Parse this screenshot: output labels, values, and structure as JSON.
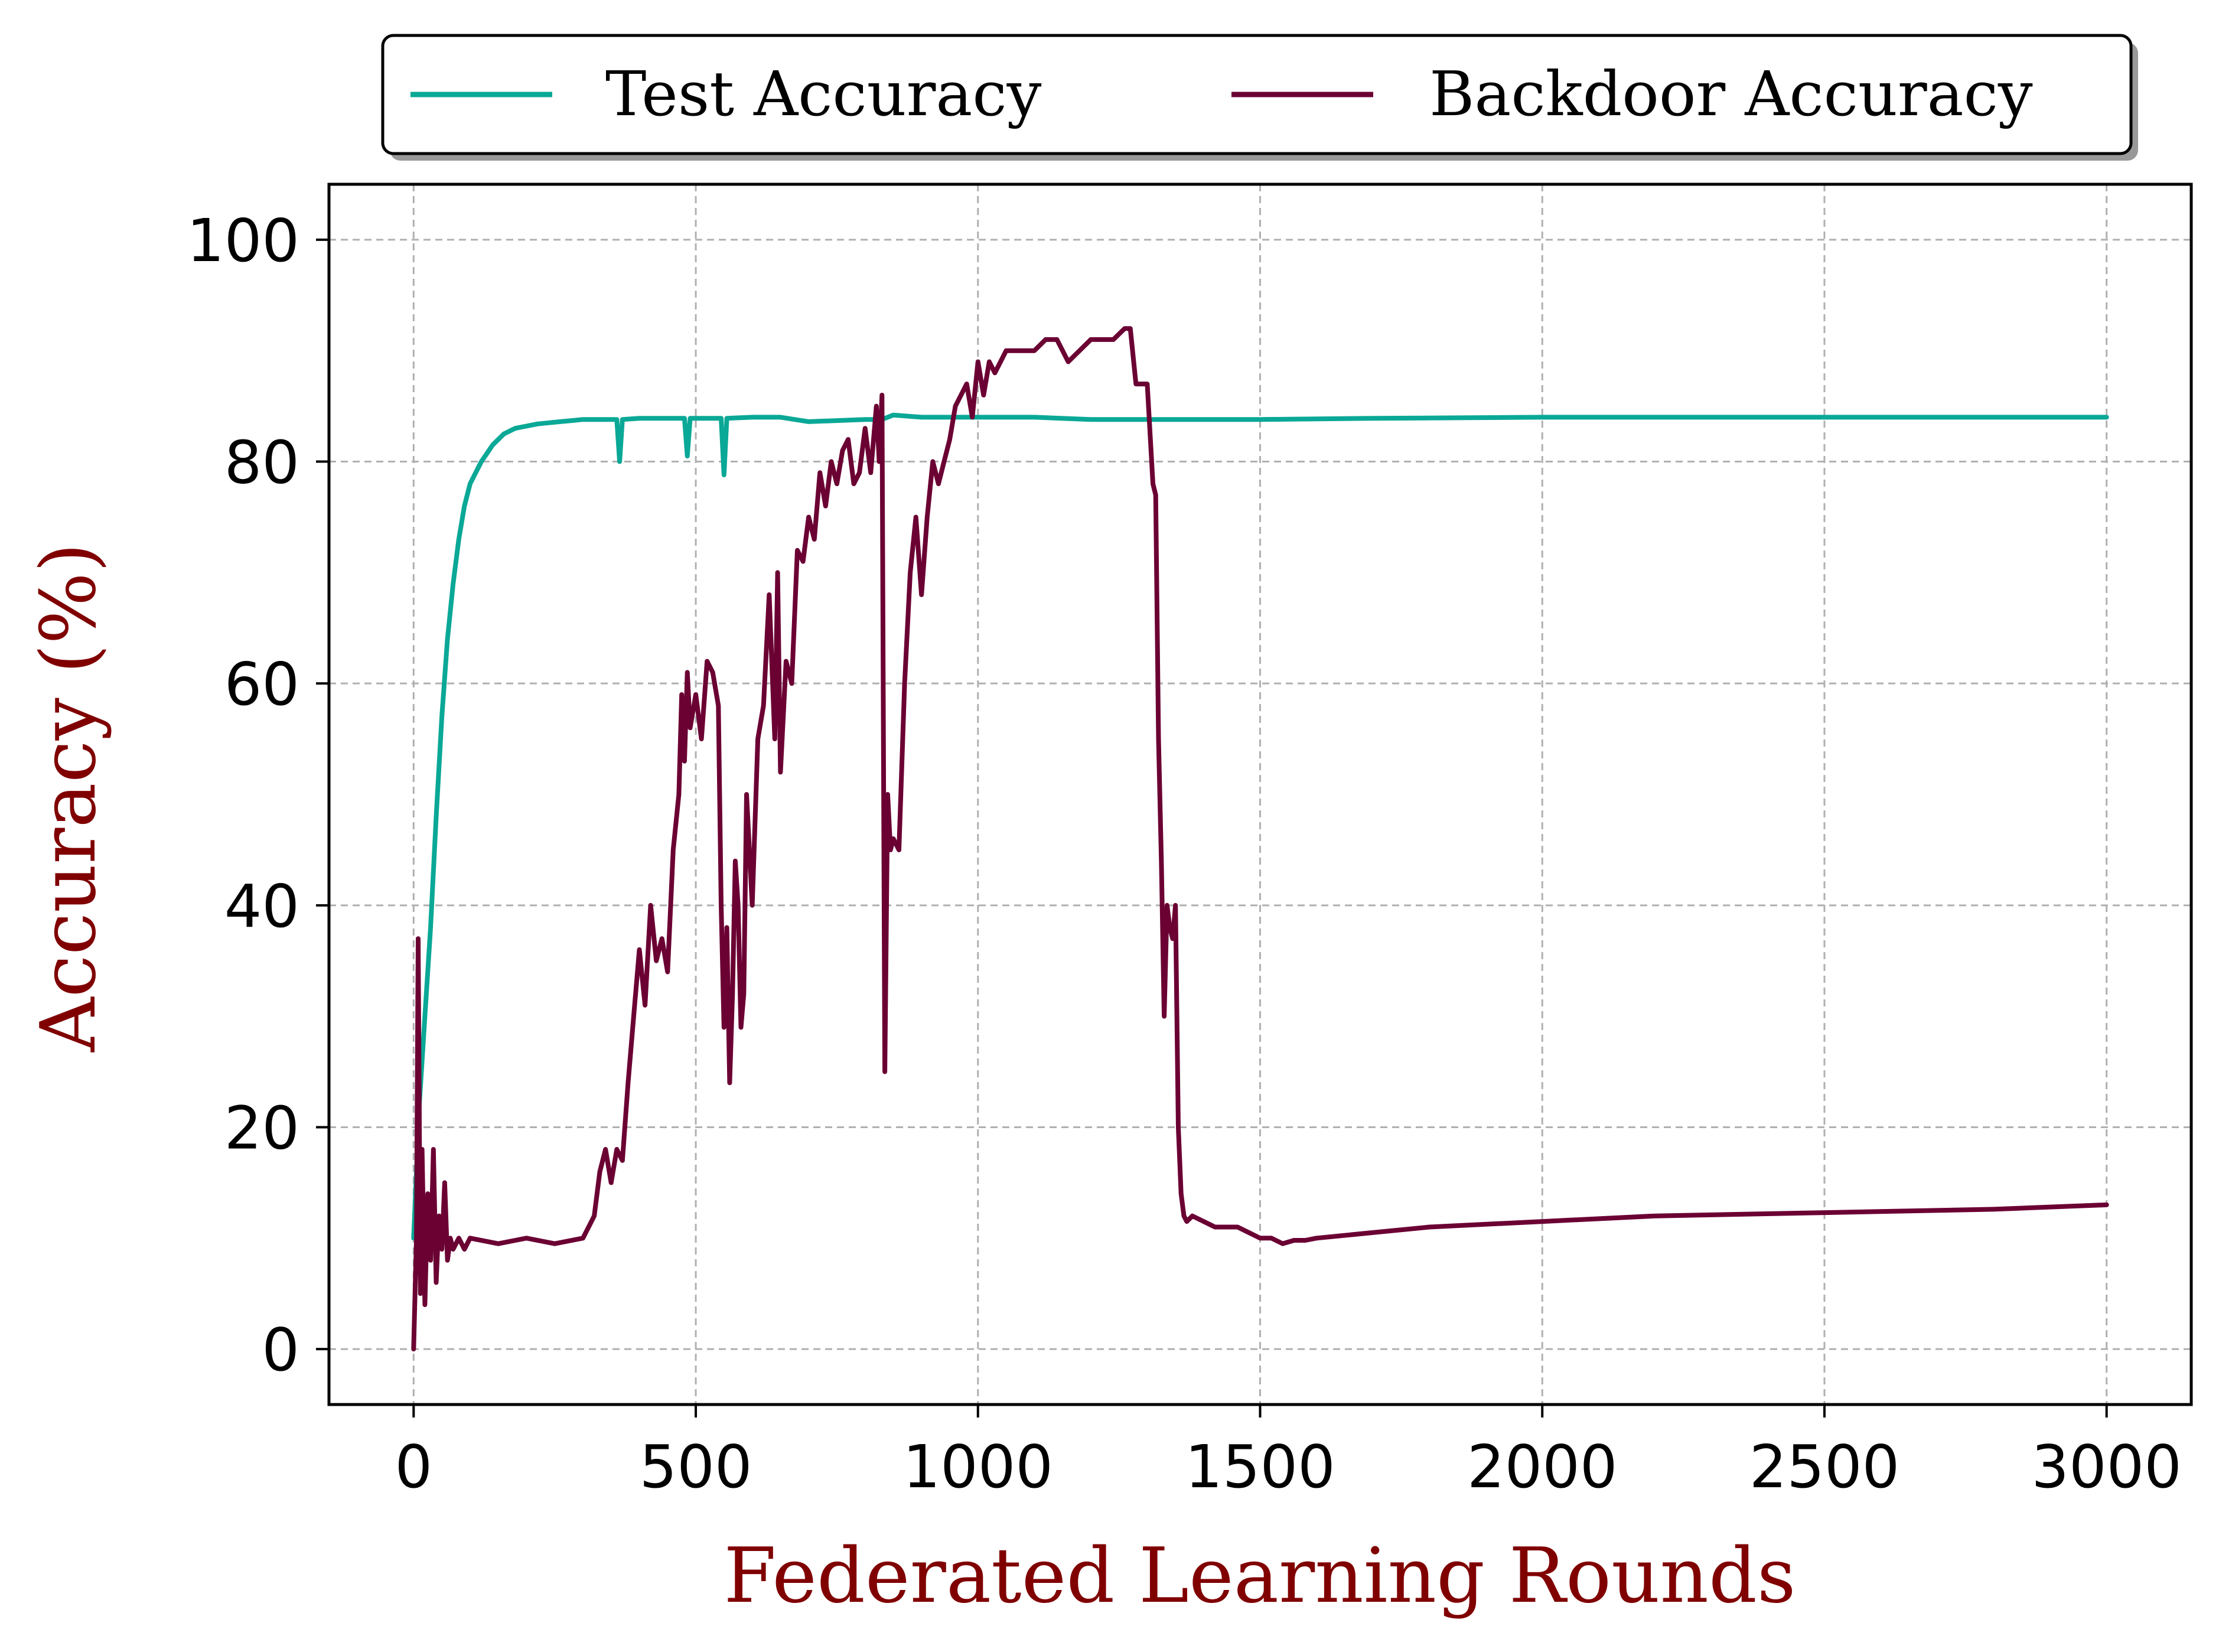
{
  "chart_data": {
    "type": "line",
    "title": "",
    "xlabel": "Federated Learning Rounds",
    "ylabel": "Accuracy (%)",
    "xlim": [
      -150,
      3150
    ],
    "ylim": [
      -5,
      105
    ],
    "xticks": [
      0,
      500,
      1000,
      1500,
      2000,
      2500,
      3000
    ],
    "yticks": [
      0,
      20,
      40,
      60,
      80,
      100
    ],
    "grid": true,
    "legend_position": "top, outside plot",
    "series": [
      {
        "name": "Test Accuracy",
        "color": "#0aa896",
        "x": [
          0,
          10,
          20,
          30,
          40,
          50,
          60,
          70,
          80,
          90,
          100,
          110,
          120,
          140,
          160,
          180,
          200,
          220,
          240,
          260,
          280,
          300,
          320,
          340,
          360,
          365,
          370,
          400,
          450,
          480,
          485,
          490,
          520,
          545,
          550,
          555,
          600,
          650,
          700,
          800,
          830,
          850,
          900,
          1000,
          1100,
          1200,
          1300,
          1400,
          1500,
          1700,
          2000,
          2500,
          3000
        ],
        "y": [
          10,
          22,
          30,
          38,
          48,
          57,
          64,
          69,
          73,
          76,
          78,
          79,
          80,
          81.5,
          82.5,
          83,
          83.2,
          83.4,
          83.5,
          83.6,
          83.7,
          83.8,
          83.8,
          83.8,
          83.8,
          80,
          83.8,
          83.9,
          83.9,
          83.9,
          80.5,
          83.9,
          83.9,
          83.9,
          78.8,
          83.9,
          84,
          84,
          83.6,
          83.8,
          83.8,
          84.2,
          84,
          84,
          84,
          83.8,
          83.8,
          83.8,
          83.8,
          83.9,
          84,
          84,
          84
        ]
      },
      {
        "name": "Backdoor Accuracy",
        "color": "#6b0033",
        "x": [
          0,
          5,
          8,
          12,
          15,
          20,
          25,
          30,
          35,
          40,
          45,
          50,
          55,
          60,
          65,
          70,
          80,
          90,
          100,
          150,
          200,
          250,
          300,
          320,
          330,
          340,
          350,
          360,
          370,
          380,
          390,
          400,
          410,
          420,
          430,
          440,
          450,
          460,
          470,
          475,
          480,
          485,
          490,
          500,
          510,
          520,
          530,
          540,
          545,
          550,
          555,
          560,
          565,
          570,
          575,
          580,
          585,
          590,
          600,
          610,
          620,
          630,
          640,
          645,
          650,
          660,
          670,
          680,
          690,
          700,
          710,
          720,
          730,
          740,
          750,
          760,
          770,
          780,
          790,
          800,
          810,
          820,
          825,
          830,
          835,
          840,
          845,
          850,
          860,
          870,
          880,
          890,
          900,
          910,
          920,
          930,
          940,
          950,
          960,
          970,
          980,
          990,
          1000,
          1010,
          1020,
          1030,
          1040,
          1050,
          1060,
          1080,
          1100,
          1120,
          1140,
          1160,
          1180,
          1200,
          1220,
          1240,
          1260,
          1270,
          1280,
          1290,
          1300,
          1310,
          1315,
          1320,
          1325,
          1330,
          1335,
          1340,
          1345,
          1350,
          1355,
          1360,
          1365,
          1370,
          1380,
          1400,
          1420,
          1440,
          1460,
          1480,
          1500,
          1520,
          1540,
          1560,
          1580,
          1600,
          1700,
          1800,
          2000,
          2200,
          2500,
          2800,
          3000
        ],
        "y": [
          0,
          10,
          37,
          5,
          18,
          4,
          14,
          8,
          18,
          6,
          12,
          9,
          15,
          8,
          10,
          9,
          10,
          9,
          10,
          9.5,
          10,
          9.5,
          10,
          12,
          16,
          18,
          15,
          18,
          17,
          24,
          30,
          36,
          31,
          40,
          35,
          37,
          34,
          45,
          50,
          59,
          53,
          61,
          56,
          59,
          55,
          62,
          61,
          58,
          40,
          29,
          38,
          24,
          32,
          44,
          40,
          29,
          32,
          50,
          40,
          55,
          58,
          68,
          55,
          70,
          52,
          62,
          60,
          72,
          71,
          75,
          73,
          79,
          76,
          80,
          78,
          81,
          82,
          78,
          79,
          83,
          79,
          85,
          80,
          86,
          25,
          50,
          45,
          46,
          45,
          60,
          70,
          75,
          68,
          75,
          80,
          78,
          80,
          82,
          85,
          86,
          87,
          84,
          89,
          86,
          89,
          88,
          89,
          90,
          90,
          90,
          90,
          91,
          91,
          89,
          90,
          91,
          91,
          91,
          92,
          92,
          87,
          87,
          87,
          78,
          77,
          55,
          44,
          30,
          40,
          38,
          37,
          40,
          20,
          14,
          12,
          11.5,
          12,
          11.5,
          11,
          11,
          11,
          10.5,
          10,
          10,
          9.5,
          9.8,
          9.8,
          10,
          10.5,
          11,
          11.5,
          12,
          12.3,
          12.6,
          13
        ]
      }
    ]
  }
}
